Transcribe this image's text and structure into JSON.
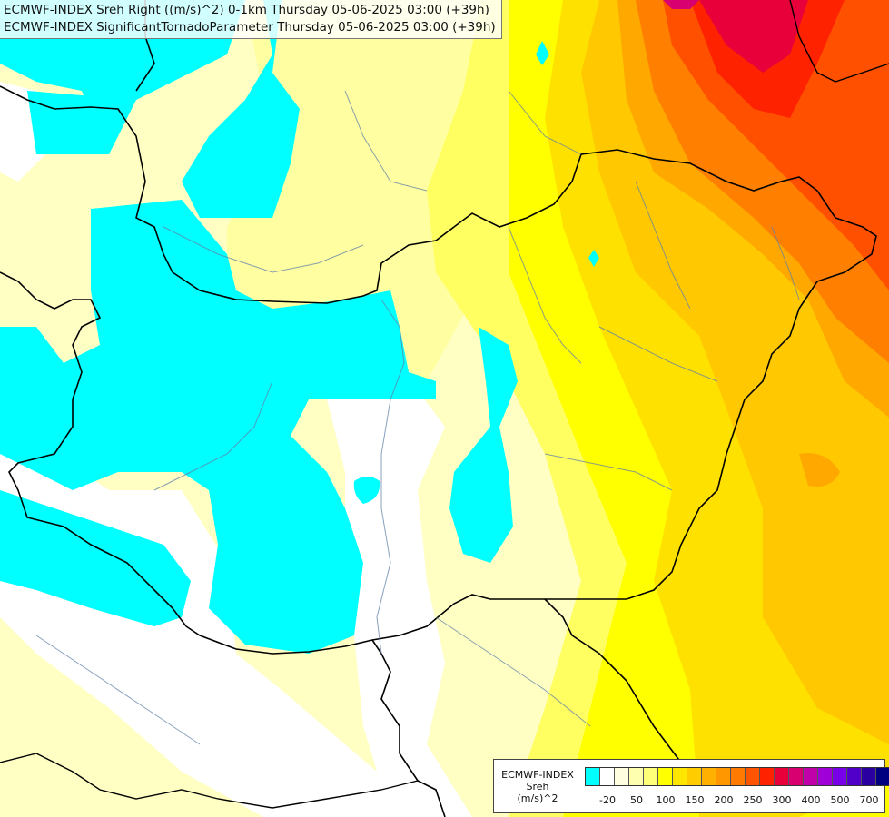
{
  "header": {
    "line1": "ECMWF-INDEX Sreh Right ((m/s)^2) 0-1km Thursday 05-06-2025 03:00 (+39h)",
    "line2": "ECMWF-INDEX SignificantTornadoParameter Thursday 05-06-2025 03:00 (+39h)"
  },
  "legend": {
    "title_line1": "ECMWF-INDEX",
    "title_line2": "Sreh",
    "title_line3": "(m/s)^2",
    "colors": [
      "#00ffff",
      "#ffffff",
      "#ffffe0",
      "#ffffb0",
      "#ffff7a",
      "#ffff00",
      "#ffe600",
      "#ffcc00",
      "#ffb000",
      "#ff9800",
      "#ff7a00",
      "#ff5500",
      "#ff2200",
      "#e8003a",
      "#d80070",
      "#c000a8",
      "#a000d8",
      "#7800e8",
      "#5000c8",
      "#2a00a0",
      "#000080"
    ],
    "ticks": [
      {
        "label": "-20",
        "index": 1
      },
      {
        "label": "50",
        "index": 3
      },
      {
        "label": "100",
        "index": 5
      },
      {
        "label": "150",
        "index": 7
      },
      {
        "label": "200",
        "index": 9
      },
      {
        "label": "250",
        "index": 11
      },
      {
        "label": "300",
        "index": 13
      },
      {
        "label": "400",
        "index": 15
      },
      {
        "label": "500",
        "index": 17
      },
      {
        "label": "700",
        "index": 19
      }
    ]
  }
}
